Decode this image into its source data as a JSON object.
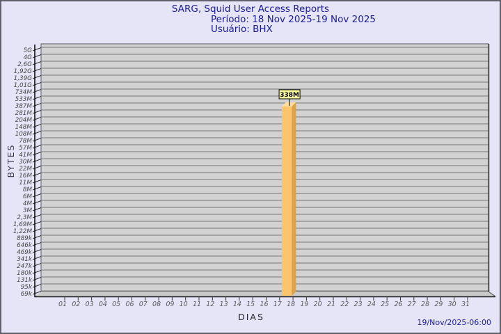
{
  "header": {
    "title": "SARG, Squid User Access Reports",
    "period": "Período: 18 Nov 2025-19 Nov 2025",
    "user": "Usuário: BHX"
  },
  "footer": {
    "generated_at": "19/Nov/2025-06:00"
  },
  "chart_data": {
    "type": "bar",
    "title": "SARG, Squid User Access Reports",
    "subtitle": "Período: 18 Nov 2025-19 Nov 2025",
    "user": "BHX",
    "xlabel": "DIAS",
    "ylabel": "BYTES",
    "y_scale": "logarithmic",
    "y_range": [
      "69k",
      "5G"
    ],
    "grid": "horizontal",
    "legend_position": "none",
    "y_tick_labels": [
      "5G",
      "4G",
      "2,6G",
      "1,92G",
      "1,39G",
      "1,01G",
      "734M",
      "533M",
      "387M",
      "281M",
      "204M",
      "148M",
      "108M",
      "78M",
      "57M",
      "41M",
      "30M",
      "22M",
      "16M",
      "11M",
      "8M",
      "6M",
      "4M",
      "3M",
      "2,3M",
      "1,69M",
      "1,22M",
      "889k",
      "646k",
      "469k",
      "341k",
      "247k",
      "180k",
      "131k",
      "95k",
      "69k"
    ],
    "x_tick_labels": [
      "01",
      "02",
      "03",
      "04",
      "05",
      "06",
      "07",
      "08",
      "09",
      "10",
      "11",
      "12",
      "13",
      "14",
      "15",
      "16",
      "17",
      "18",
      "19",
      "20",
      "21",
      "22",
      "23",
      "24",
      "25",
      "26",
      "27",
      "28",
      "29",
      "30",
      "31"
    ],
    "bars": [
      {
        "day": "18",
        "value_label": "338M",
        "value_bytes_approx": 338000000
      }
    ],
    "colors": {
      "page_bg": "#E5E5F7",
      "wall_bg": "#D2D2D2",
      "floor_bg": "#C9C9C9",
      "grid_line": "#757575",
      "axis_line": "#000000",
      "tick_text": "#474747",
      "bar_front": "#FCC46B",
      "bar_side": "#D9A24C",
      "bar_top": "#FEDC9E",
      "value_box_bg": "#FFFF9E",
      "value_box_border": "#000000",
      "title_text": "#1B1B96"
    }
  }
}
